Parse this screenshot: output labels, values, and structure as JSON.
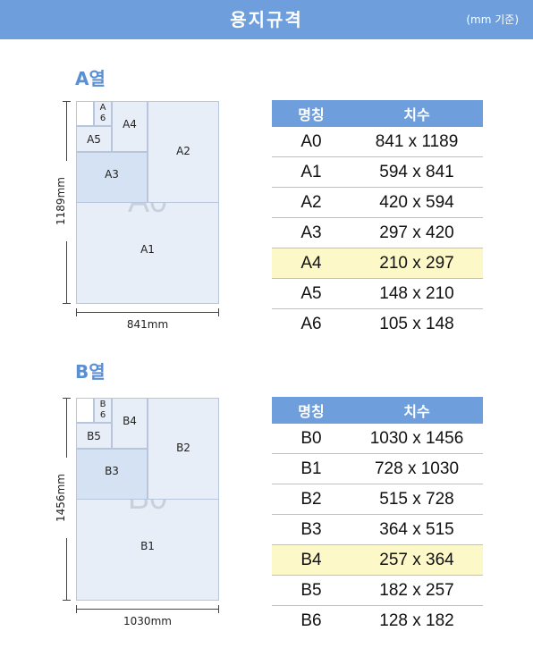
{
  "header": {
    "title": "용지규격",
    "unit_note": "(mm 기준)"
  },
  "colors": {
    "header_bg": "#6e9fdc",
    "highlight_row": "#fdf8c8",
    "section_title": "#5b8fd3"
  },
  "sections": [
    {
      "title": "A열",
      "diagram": {
        "labels": {
          "big": "A2",
          "full": "A1",
          "mid": "A3",
          "small": "A4",
          "smaller": "A5",
          "smallest": "A\n6"
        },
        "watermark": "A0",
        "height_label": "1189mm",
        "width_label": "841mm"
      },
      "table": {
        "headers": [
          "명칭",
          "치수"
        ],
        "rows": [
          {
            "name": "A0",
            "size": "841 x 1189"
          },
          {
            "name": "A1",
            "size": "594 x 841"
          },
          {
            "name": "A2",
            "size": "420 x 594"
          },
          {
            "name": "A3",
            "size": "297 x 420"
          },
          {
            "name": "A4",
            "size": "210 x 297",
            "highlight": true
          },
          {
            "name": "A5",
            "size": "148 x 210"
          },
          {
            "name": "A6",
            "size": "105 x 148"
          }
        ]
      }
    },
    {
      "title": "B열",
      "diagram": {
        "labels": {
          "big": "B2",
          "full": "B1",
          "mid": "B3",
          "small": "B4",
          "smaller": "B5",
          "smallest": "B\n6"
        },
        "watermark": "B0",
        "height_label": "1456mm",
        "width_label": "1030mm"
      },
      "table": {
        "headers": [
          "명칭",
          "치수"
        ],
        "rows": [
          {
            "name": "B0",
            "size": "1030 x 1456"
          },
          {
            "name": "B1",
            "size": "728 x 1030"
          },
          {
            "name": "B2",
            "size": "515 x 728"
          },
          {
            "name": "B3",
            "size": "364 x 515"
          },
          {
            "name": "B4",
            "size": "257 x 364",
            "highlight": true
          },
          {
            "name": "B5",
            "size": "182 x 257"
          },
          {
            "name": "B6",
            "size": "128 x 182"
          }
        ]
      }
    }
  ]
}
